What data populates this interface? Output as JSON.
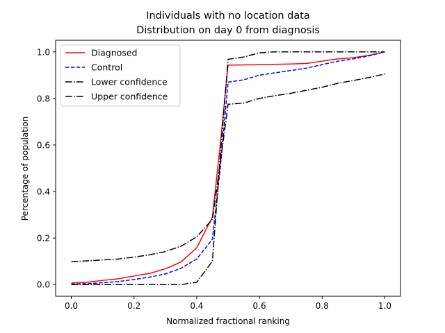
{
  "chart_data": {
    "type": "line",
    "title": "Individuals with no location data",
    "subtitle": "Distribution on day 0 from diagnosis",
    "xlabel": "Normalized fractional ranking",
    "ylabel": "Percentage of population",
    "xlim": [
      -0.05,
      1.05
    ],
    "ylim": [
      -0.05,
      1.05
    ],
    "xticks": [
      0.0,
      0.2,
      0.4,
      0.6,
      0.8,
      1.0
    ],
    "xtick_labels": [
      "0.0",
      "0.2",
      "0.4",
      "0.6",
      "0.8",
      "1.0"
    ],
    "yticks": [
      0.0,
      0.2,
      0.4,
      0.6,
      0.8,
      1.0
    ],
    "ytick_labels": [
      "0.0",
      "0.2",
      "0.4",
      "0.6",
      "0.8",
      "1.0"
    ],
    "grid": false,
    "legend": "upper-left",
    "series": [
      {
        "name": "Diagnosed",
        "color": "#ff0000",
        "dash": "solid",
        "points": [
          [
            0.0,
            0.007
          ],
          [
            0.05,
            0.01
          ],
          [
            0.1,
            0.018
          ],
          [
            0.15,
            0.025
          ],
          [
            0.2,
            0.037
          ],
          [
            0.25,
            0.048
          ],
          [
            0.3,
            0.068
          ],
          [
            0.35,
            0.097
          ],
          [
            0.4,
            0.158
          ],
          [
            0.45,
            0.29
          ],
          [
            0.475,
            0.6
          ],
          [
            0.5,
            0.943
          ],
          [
            0.6,
            0.945
          ],
          [
            0.7,
            0.948
          ],
          [
            0.75,
            0.95
          ],
          [
            0.8,
            0.96
          ],
          [
            0.85,
            0.97
          ],
          [
            0.9,
            0.975
          ],
          [
            0.95,
            0.985
          ],
          [
            1.0,
            1.0
          ]
        ]
      },
      {
        "name": "Control",
        "color": "#0000ff",
        "dash": "dashed",
        "points": [
          [
            0.0,
            0.002
          ],
          [
            0.05,
            0.004
          ],
          [
            0.1,
            0.008
          ],
          [
            0.15,
            0.013
          ],
          [
            0.2,
            0.022
          ],
          [
            0.25,
            0.032
          ],
          [
            0.3,
            0.046
          ],
          [
            0.35,
            0.07
          ],
          [
            0.4,
            0.11
          ],
          [
            0.45,
            0.195
          ],
          [
            0.475,
            0.5
          ],
          [
            0.5,
            0.87
          ],
          [
            0.55,
            0.88
          ],
          [
            0.6,
            0.9
          ],
          [
            0.65,
            0.91
          ],
          [
            0.7,
            0.92
          ],
          [
            0.75,
            0.93
          ],
          [
            0.8,
            0.945
          ],
          [
            0.85,
            0.96
          ],
          [
            0.9,
            0.97
          ],
          [
            0.95,
            0.983
          ],
          [
            1.0,
            1.0
          ]
        ]
      },
      {
        "name": "Lower confidence",
        "color": "#000000",
        "dash": "dashdot",
        "points": [
          [
            0.0,
            0.0
          ],
          [
            0.1,
            0.0
          ],
          [
            0.2,
            0.0
          ],
          [
            0.3,
            0.0
          ],
          [
            0.35,
            0.0
          ],
          [
            0.4,
            0.01
          ],
          [
            0.45,
            0.1
          ],
          [
            0.475,
            0.55
          ],
          [
            0.5,
            0.968
          ],
          [
            0.55,
            0.978
          ],
          [
            0.6,
            0.996
          ],
          [
            0.65,
            1.0
          ],
          [
            0.7,
            1.0
          ],
          [
            0.8,
            1.0
          ],
          [
            0.9,
            1.0
          ],
          [
            1.0,
            1.0
          ]
        ]
      },
      {
        "name": "Upper confidence",
        "color": "#000000",
        "dash": "dashdot",
        "points": [
          [
            0.0,
            0.098
          ],
          [
            0.05,
            0.102
          ],
          [
            0.1,
            0.106
          ],
          [
            0.15,
            0.11
          ],
          [
            0.2,
            0.118
          ],
          [
            0.25,
            0.128
          ],
          [
            0.3,
            0.142
          ],
          [
            0.35,
            0.165
          ],
          [
            0.4,
            0.205
          ],
          [
            0.45,
            0.28
          ],
          [
            0.475,
            0.52
          ],
          [
            0.5,
            0.775
          ],
          [
            0.55,
            0.78
          ],
          [
            0.6,
            0.8
          ],
          [
            0.65,
            0.812
          ],
          [
            0.7,
            0.822
          ],
          [
            0.75,
            0.835
          ],
          [
            0.8,
            0.848
          ],
          [
            0.85,
            0.865
          ],
          [
            0.9,
            0.877
          ],
          [
            0.95,
            0.89
          ],
          [
            1.0,
            0.905
          ]
        ]
      }
    ]
  }
}
